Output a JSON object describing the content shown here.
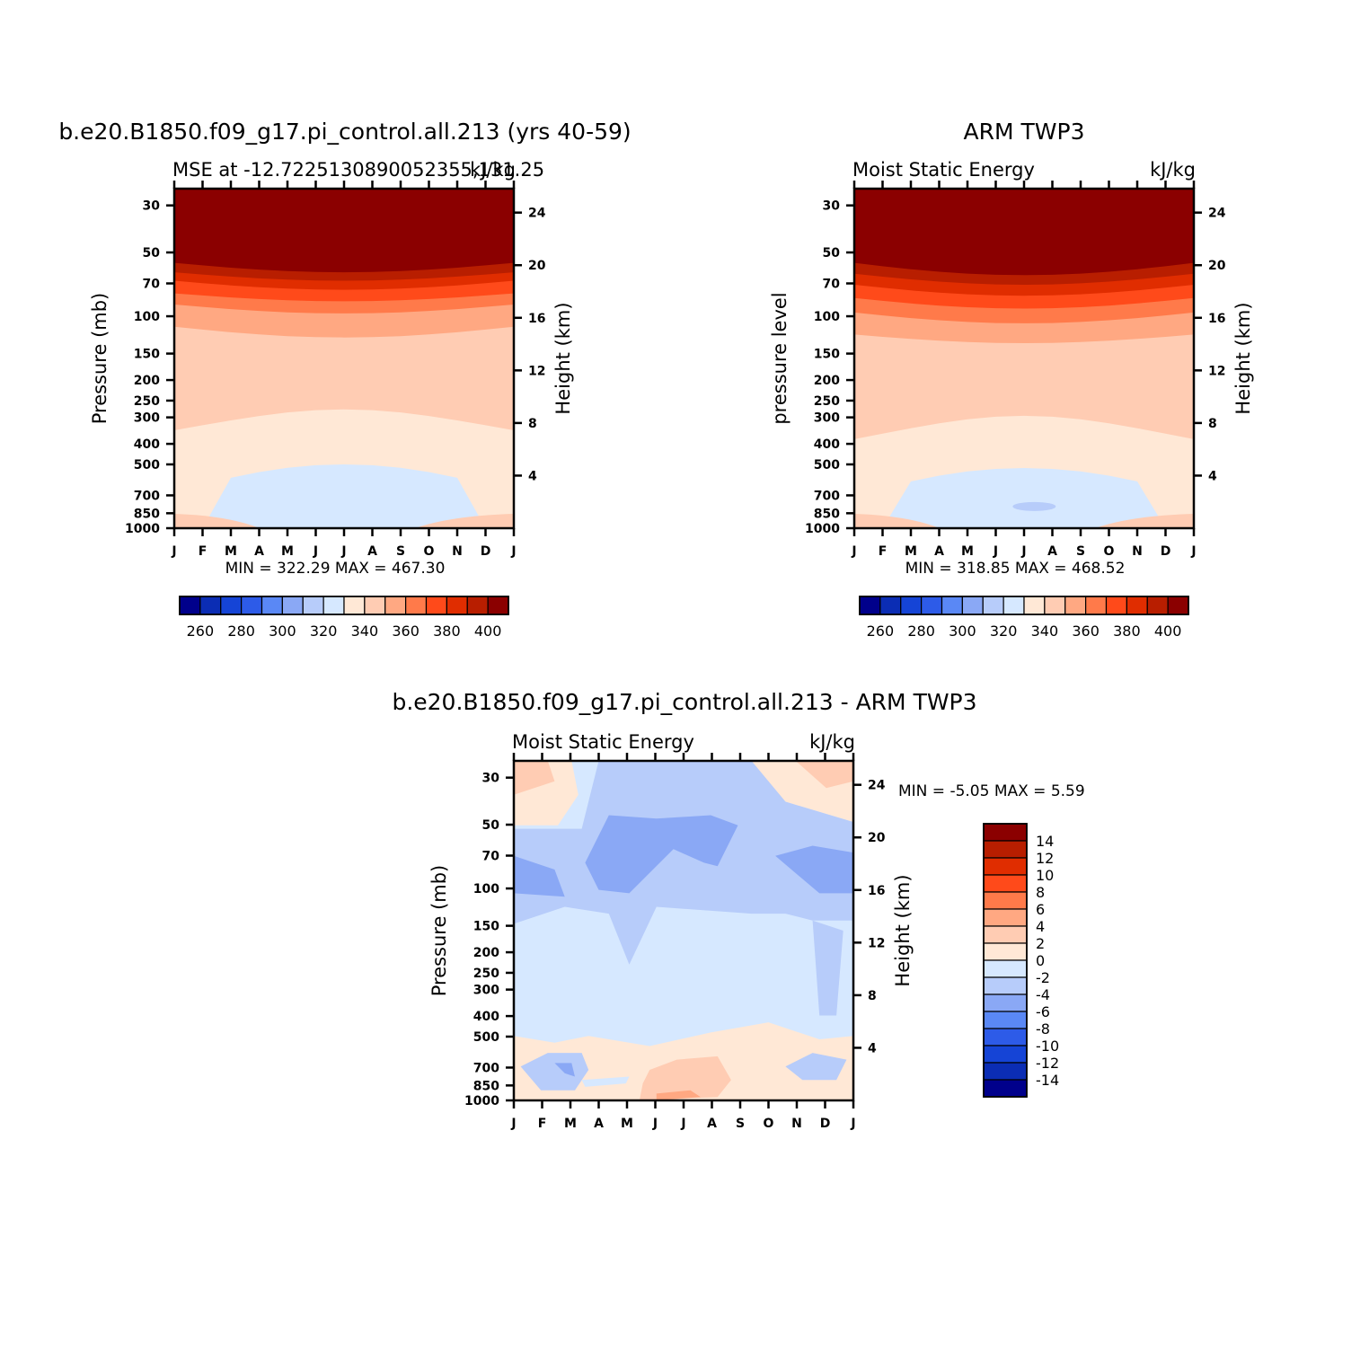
{
  "chart_data": [
    {
      "type": "heatmap",
      "panel": "model",
      "title": "b.e20.B1850.f09_g17.pi_control.all.213 (yrs 40-59)",
      "left_subtitle": "MSE at -12.7225130890052355,131.25",
      "right_subtitle": "kJ/kg",
      "ylabel": "Pressure (mb)",
      "y2label": "Height (km)",
      "x_categories": [
        "J",
        "F",
        "M",
        "A",
        "M",
        "J",
        "J",
        "A",
        "S",
        "O",
        "N",
        "D",
        "J"
      ],
      "y_ticks": [
        "30",
        "50",
        "70",
        "100",
        "150",
        "200",
        "250",
        "300",
        "400",
        "500",
        "700",
        "850",
        "1000"
      ],
      "y2_ticks": [
        "24",
        "20",
        "16",
        "12",
        "8",
        "4"
      ],
      "stats": "MIN = 322.29 MAX = 467.30",
      "levels": [
        260,
        270,
        280,
        290,
        300,
        310,
        320,
        330,
        340,
        350,
        360,
        370,
        380,
        390,
        400
      ],
      "colorbar_labels": [
        "260",
        "280",
        "300",
        "320",
        "340",
        "360",
        "380",
        "400"
      ],
      "profile": {
        "pressure_mb": [
          30,
          50,
          60,
          70,
          80,
          100,
          150,
          300,
          500,
          700,
          850,
          1000
        ],
        "value": [
          467,
          420,
          400,
          390,
          382,
          360,
          345,
          339,
          332,
          328,
          334,
          336
        ]
      }
    },
    {
      "type": "heatmap",
      "panel": "observations",
      "title": "ARM TWP3",
      "left_subtitle": "Moist Static Energy",
      "right_subtitle": "kJ/kg",
      "ylabel": "pressure level",
      "y2label": "Height (km)",
      "x_categories": [
        "J",
        "F",
        "M",
        "A",
        "M",
        "J",
        "J",
        "A",
        "S",
        "O",
        "N",
        "D",
        "J"
      ],
      "y_ticks": [
        "30",
        "50",
        "70",
        "100",
        "150",
        "200",
        "250",
        "300",
        "400",
        "500",
        "700",
        "850",
        "1000"
      ],
      "y2_ticks": [
        "24",
        "20",
        "16",
        "12",
        "8",
        "4"
      ],
      "stats": "MIN = 318.85 MAX = 468.52",
      "levels": [
        260,
        270,
        280,
        290,
        300,
        310,
        320,
        330,
        340,
        350,
        360,
        370,
        380,
        390,
        400
      ],
      "colorbar_labels": [
        "260",
        "280",
        "300",
        "320",
        "340",
        "360",
        "380",
        "400"
      ]
    },
    {
      "type": "heatmap",
      "panel": "difference",
      "title": "b.e20.B1850.f09_g17.pi_control.all.213 - ARM TWP3",
      "left_subtitle": "Moist Static Energy",
      "right_subtitle": "kJ/kg",
      "ylabel": "Pressure (mb)",
      "y2label": "Height (km)",
      "x_categories": [
        "J",
        "F",
        "M",
        "A",
        "M",
        "J",
        "J",
        "A",
        "S",
        "O",
        "N",
        "D",
        "J"
      ],
      "y_ticks": [
        "30",
        "50",
        "70",
        "100",
        "150",
        "200",
        "250",
        "300",
        "400",
        "500",
        "700",
        "850",
        "1000"
      ],
      "y2_ticks": [
        "24",
        "20",
        "16",
        "12",
        "8",
        "4"
      ],
      "stats": "MIN =   -5.05 MAX =    5.59",
      "levels": [
        -14,
        -12,
        -10,
        -8,
        -6,
        -4,
        -2,
        0,
        2,
        4,
        6,
        8,
        10,
        12,
        14
      ],
      "colorbar_labels": [
        "14",
        "12",
        "10",
        "8",
        "6",
        "4",
        "2",
        "0",
        "-2",
        "-4",
        "-6",
        "-8",
        "-10",
        "-12",
        "-14"
      ]
    }
  ],
  "colors": {
    "palette": [
      "#00008b",
      "#0b2db4",
      "#1544d6",
      "#2d5be8",
      "#5a88f5",
      "#8aa8f5",
      "#b7ccfa",
      "#d6e8ff",
      "#ffe8d6",
      "#ffccb3",
      "#ffa882",
      "#ff7a4a",
      "#ff4a1a",
      "#e02d00",
      "#b81e00",
      "#8b0000"
    ]
  }
}
